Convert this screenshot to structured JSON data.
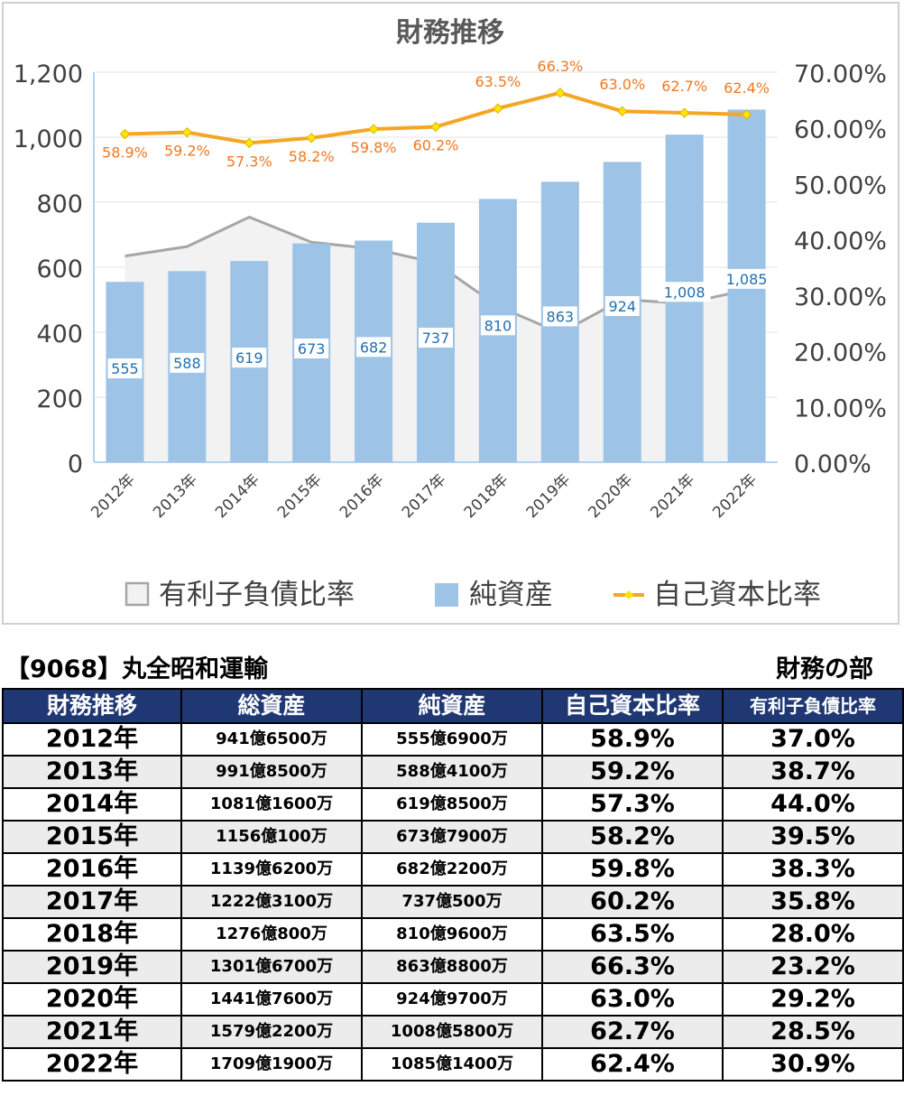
{
  "chart_data": {
    "type": "bar",
    "title": "財務推移",
    "categories": [
      "2012年",
      "2013年",
      "2014年",
      "2015年",
      "2016年",
      "2017年",
      "2018年",
      "2019年",
      "2020年",
      "2021年",
      "2022年"
    ],
    "series": [
      {
        "name": "有利子負債比率",
        "type": "area",
        "axis": "right",
        "values": [
          37.0,
          38.7,
          44.0,
          39.5,
          38.3,
          35.8,
          28.0,
          23.2,
          29.2,
          28.5,
          30.9
        ]
      },
      {
        "name": "純資産",
        "type": "bar",
        "axis": "left",
        "values": [
          555,
          588,
          619,
          673,
          682,
          737,
          810,
          863,
          924,
          1008,
          1085
        ],
        "data_labels": [
          "555",
          "588",
          "619",
          "673",
          "682",
          "737",
          "810",
          "863",
          "924",
          "1,008",
          "1,085"
        ]
      },
      {
        "name": "自己資本比率",
        "type": "line",
        "axis": "right",
        "values": [
          58.9,
          59.2,
          57.3,
          58.2,
          59.8,
          60.2,
          63.5,
          66.3,
          63.0,
          62.7,
          62.4
        ],
        "data_labels": [
          "58.9%",
          "59.2%",
          "57.3%",
          "58.2%",
          "59.8%",
          "60.2%",
          "63.5%",
          "66.3%",
          "63.0%",
          "62.7%",
          "62.4%"
        ]
      }
    ],
    "y_left": {
      "min": 0,
      "max": 1200,
      "ticks": [
        "0",
        "200",
        "400",
        "600",
        "800",
        "1,000",
        "1,200"
      ]
    },
    "y_right": {
      "min": 0,
      "max": 70,
      "ticks": [
        "0.00%",
        "10.00%",
        "20.00%",
        "30.00%",
        "40.00%",
        "50.00%",
        "60.00%",
        "70.00%"
      ]
    },
    "legend_position": "bottom",
    "grid": true,
    "colors": {
      "area_fill": "#f2f2f2",
      "area_stroke": "#a6a6a6",
      "bar": "#9dc3e6",
      "line": "#f5a623",
      "marker": "#ffe600",
      "line_label": "#f07820",
      "bar_label": "#1f6fb4"
    }
  },
  "heading": {
    "company": "【9068】丸全昭和運輸",
    "section": "財務の部"
  },
  "table": {
    "headers": [
      "財務推移",
      "総資産",
      "純資産",
      "自己資本比率",
      "有利子負債比率"
    ],
    "rows": [
      [
        "2012年",
        "941億6500万",
        "555億6900万",
        "58.9%",
        "37.0%"
      ],
      [
        "2013年",
        "991億8500万",
        "588億4100万",
        "59.2%",
        "38.7%"
      ],
      [
        "2014年",
        "1081億1600万",
        "619億8500万",
        "57.3%",
        "44.0%"
      ],
      [
        "2015年",
        "1156億100万",
        "673億7900万",
        "58.2%",
        "39.5%"
      ],
      [
        "2016年",
        "1139億6200万",
        "682億2200万",
        "59.8%",
        "38.3%"
      ],
      [
        "2017年",
        "1222億3100万",
        "737億500万",
        "60.2%",
        "35.8%"
      ],
      [
        "2018年",
        "1276億800万",
        "810億9600万",
        "63.5%",
        "28.0%"
      ],
      [
        "2019年",
        "1301億6700万",
        "863億8800万",
        "66.3%",
        "23.2%"
      ],
      [
        "2020年",
        "1441億7600万",
        "924億9700万",
        "63.0%",
        "29.2%"
      ],
      [
        "2021年",
        "1579億2200万",
        "1008億5800万",
        "62.7%",
        "28.5%"
      ],
      [
        "2022年",
        "1709億1900万",
        "1085億1400万",
        "62.4%",
        "30.9%"
      ]
    ]
  }
}
